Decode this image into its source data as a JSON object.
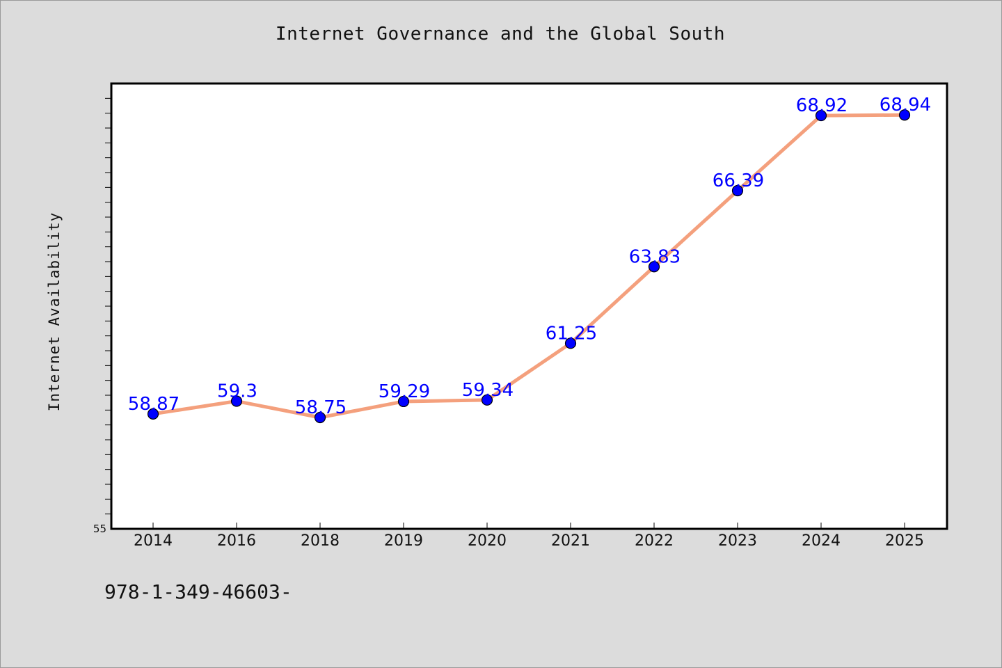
{
  "chart_data": {
    "type": "line",
    "title": "Internet Governance and the Global South",
    "xlabel": "",
    "ylabel": "Internet Availability",
    "categories": [
      "2014",
      "2016",
      "2018",
      "2019",
      "2020",
      "2021",
      "2022",
      "2023",
      "2024",
      "2025"
    ],
    "series": [
      {
        "values": [
          58.87,
          59.3,
          58.75,
          59.29,
          59.34,
          61.25,
          63.83,
          66.39,
          68.92,
          68.94
        ],
        "labels": [
          "58.87",
          "59.3",
          "58.75",
          "59.29",
          "59.34",
          "61.25",
          "63.83",
          "66.39",
          "68.92",
          "68.94"
        ]
      }
    ],
    "ylim": [
      55,
      70
    ],
    "y_tick_label": "55",
    "grid": false,
    "legend": "none",
    "colors": {
      "line": "#f4a07d",
      "marker": "#0000ff",
      "marker_edge": "#000000",
      "data_label": "#0000ff",
      "background": "#dcdcdc",
      "plot_background": "#ffffff"
    }
  },
  "footer": {
    "text": "978-1-349-46603-"
  }
}
